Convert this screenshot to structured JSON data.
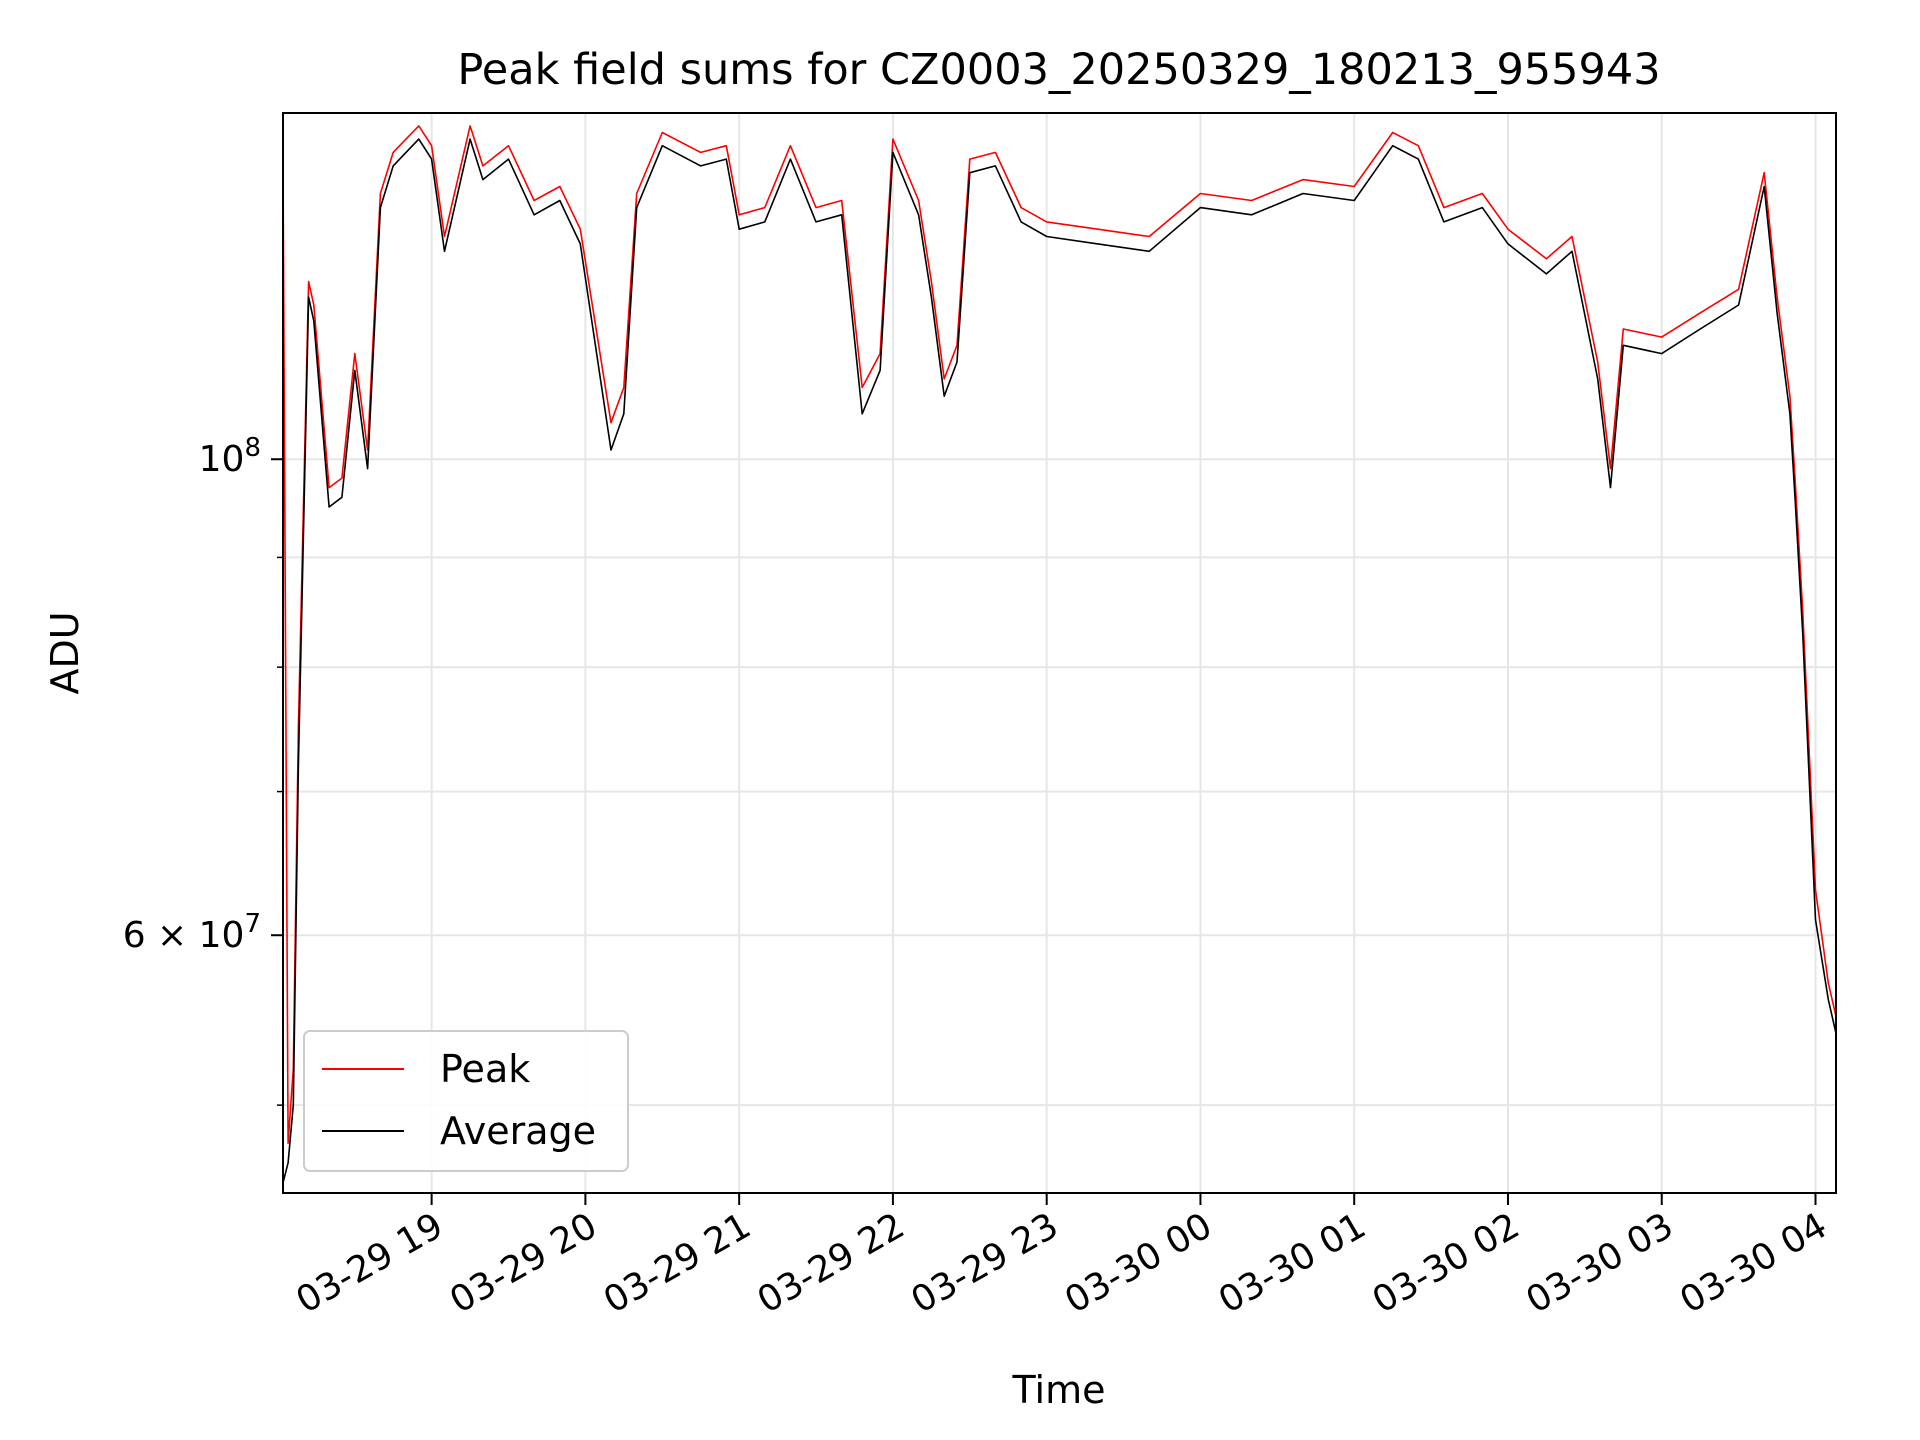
{
  "chart_data": {
    "type": "line",
    "title": "Peak field sums for CZ0003_20250329_180213_955943",
    "xlabel": "Time",
    "ylabel": "ADU",
    "y_scale": "log",
    "ylim": [
      45500000,
      145000000
    ],
    "xlim": [
      "2025-03-29 18:02",
      "2025-03-30 04:08"
    ],
    "x_ticks": [
      {
        "value": "2025-03-29 19:00",
        "label": "03-29 19"
      },
      {
        "value": "2025-03-29 20:00",
        "label": "03-29 20"
      },
      {
        "value": "2025-03-29 21:00",
        "label": "03-29 21"
      },
      {
        "value": "2025-03-29 22:00",
        "label": "03-29 22"
      },
      {
        "value": "2025-03-29 23:00",
        "label": "03-29 23"
      },
      {
        "value": "2025-03-30 00:00",
        "label": "03-30 00"
      },
      {
        "value": "2025-03-30 01:00",
        "label": "03-30 01"
      },
      {
        "value": "2025-03-30 02:00",
        "label": "03-30 02"
      },
      {
        "value": "2025-03-30 03:00",
        "label": "03-30 03"
      },
      {
        "value": "2025-03-30 04:00",
        "label": "03-30 04"
      }
    ],
    "y_major_ticks": [
      {
        "value": 100000000,
        "base": "10",
        "exp": "8"
      },
      {
        "value": 60000000,
        "base": "6 × 10",
        "exp": "7"
      }
    ],
    "y_minor_gridlines": [
      50000000,
      70000000,
      80000000,
      90000000
    ],
    "grid": true,
    "legend_position": "lower-left",
    "series": [
      {
        "name": "Peak",
        "color": "#ff0000",
        "x": [
          "2025-03-29 18:02",
          "2025-03-29 18:04",
          "2025-03-29 18:06",
          "2025-03-29 18:08",
          "2025-03-29 18:12",
          "2025-03-29 18:14",
          "2025-03-29 18:20",
          "2025-03-29 18:25",
          "2025-03-29 18:30",
          "2025-03-29 18:35",
          "2025-03-29 18:40",
          "2025-03-29 18:45",
          "2025-03-29 18:50",
          "2025-03-29 18:55",
          "2025-03-29 19:00",
          "2025-03-29 19:05",
          "2025-03-29 19:15",
          "2025-03-29 19:20",
          "2025-03-29 19:30",
          "2025-03-29 19:40",
          "2025-03-29 19:50",
          "2025-03-29 19:58",
          "2025-03-29 20:10",
          "2025-03-29 20:15",
          "2025-03-29 20:20",
          "2025-03-29 20:30",
          "2025-03-29 20:45",
          "2025-03-29 20:55",
          "2025-03-29 21:00",
          "2025-03-29 21:10",
          "2025-03-29 21:20",
          "2025-03-29 21:30",
          "2025-03-29 21:40",
          "2025-03-29 21:48",
          "2025-03-29 21:55",
          "2025-03-29 22:00",
          "2025-03-29 22:10",
          "2025-03-29 22:15",
          "2025-03-29 22:20",
          "2025-03-29 22:25",
          "2025-03-29 22:30",
          "2025-03-29 22:40",
          "2025-03-29 22:50",
          "2025-03-29 23:00",
          "2025-03-29 23:20",
          "2025-03-29 23:40",
          "2025-03-30 00:00",
          "2025-03-30 00:20",
          "2025-03-30 00:40",
          "2025-03-30 01:00",
          "2025-03-30 01:15",
          "2025-03-30 01:25",
          "2025-03-30 01:35",
          "2025-03-30 01:50",
          "2025-03-30 02:00",
          "2025-03-30 02:15",
          "2025-03-30 02:25",
          "2025-03-30 02:35",
          "2025-03-30 02:40",
          "2025-03-30 02:45",
          "2025-03-30 03:00",
          "2025-03-30 03:15",
          "2025-03-30 03:30",
          "2025-03-30 03:40",
          "2025-03-30 03:45",
          "2025-03-30 03:50",
          "2025-03-30 03:52",
          "2025-03-30 03:55",
          "2025-03-30 04:00",
          "2025-03-30 04:05",
          "2025-03-30 04:08"
        ],
        "y": [
          138000000,
          48000000,
          52000000,
          75000000,
          121000000,
          118000000,
          97000000,
          98000000,
          112000000,
          101000000,
          133000000,
          139000000,
          141000000,
          143000000,
          140000000,
          127000000,
          143000000,
          137000000,
          140000000,
          132000000,
          134000000,
          128000000,
          104000000,
          108000000,
          133000000,
          142000000,
          139000000,
          140000000,
          130000000,
          131000000,
          140000000,
          131000000,
          132000000,
          108000000,
          112000000,
          141000000,
          132000000,
          121000000,
          109000000,
          113000000,
          138000000,
          139000000,
          131000000,
          129000000,
          128000000,
          127000000,
          133000000,
          132000000,
          135000000,
          134000000,
          142000000,
          140000000,
          131000000,
          133000000,
          128000000,
          124000000,
          127000000,
          111000000,
          99000000,
          115000000,
          114000000,
          117000000,
          120000000,
          136000000,
          119000000,
          107000000,
          98000000,
          85000000,
          63000000,
          57000000,
          55000000
        ]
      },
      {
        "name": "Average",
        "color": "#000000",
        "x": [
          "2025-03-29 18:02",
          "2025-03-29 18:04",
          "2025-03-29 18:06",
          "2025-03-29 18:08",
          "2025-03-29 18:12",
          "2025-03-29 18:14",
          "2025-03-29 18:20",
          "2025-03-29 18:25",
          "2025-03-29 18:30",
          "2025-03-29 18:35",
          "2025-03-29 18:40",
          "2025-03-29 18:45",
          "2025-03-29 18:50",
          "2025-03-29 18:55",
          "2025-03-29 19:00",
          "2025-03-29 19:05",
          "2025-03-29 19:15",
          "2025-03-29 19:20",
          "2025-03-29 19:30",
          "2025-03-29 19:40",
          "2025-03-29 19:50",
          "2025-03-29 19:58",
          "2025-03-29 20:10",
          "2025-03-29 20:15",
          "2025-03-29 20:20",
          "2025-03-29 20:30",
          "2025-03-29 20:45",
          "2025-03-29 20:55",
          "2025-03-29 21:00",
          "2025-03-29 21:10",
          "2025-03-29 21:20",
          "2025-03-29 21:30",
          "2025-03-29 21:40",
          "2025-03-29 21:48",
          "2025-03-29 21:55",
          "2025-03-29 22:00",
          "2025-03-29 22:10",
          "2025-03-29 22:15",
          "2025-03-29 22:20",
          "2025-03-29 22:25",
          "2025-03-29 22:30",
          "2025-03-29 22:40",
          "2025-03-29 22:50",
          "2025-03-29 23:00",
          "2025-03-29 23:20",
          "2025-03-29 23:40",
          "2025-03-30 00:00",
          "2025-03-30 00:20",
          "2025-03-30 00:40",
          "2025-03-30 01:00",
          "2025-03-30 01:15",
          "2025-03-30 01:25",
          "2025-03-30 01:35",
          "2025-03-30 01:50",
          "2025-03-30 02:00",
          "2025-03-30 02:15",
          "2025-03-30 02:25",
          "2025-03-30 02:35",
          "2025-03-30 02:40",
          "2025-03-30 02:45",
          "2025-03-30 03:00",
          "2025-03-30 03:15",
          "2025-03-30 03:30",
          "2025-03-30 03:40",
          "2025-03-30 03:45",
          "2025-03-30 03:50",
          "2025-03-30 03:52",
          "2025-03-30 03:55",
          "2025-03-30 04:00",
          "2025-03-30 04:05",
          "2025-03-30 04:08"
        ],
        "y": [
          46000000,
          47000000,
          50000000,
          72000000,
          119000000,
          116000000,
          95000000,
          96000000,
          110000000,
          99000000,
          131000000,
          137000000,
          139000000,
          141000000,
          138000000,
          125000000,
          141000000,
          135000000,
          138000000,
          130000000,
          132000000,
          126000000,
          101000000,
          105000000,
          131000000,
          140000000,
          137000000,
          138000000,
          128000000,
          129000000,
          138000000,
          129000000,
          130000000,
          105000000,
          110000000,
          139000000,
          130000000,
          119000000,
          107000000,
          111000000,
          136000000,
          137000000,
          129000000,
          127000000,
          126000000,
          125000000,
          131000000,
          130000000,
          133000000,
          132000000,
          140000000,
          138000000,
          129000000,
          131000000,
          126000000,
          122000000,
          125000000,
          109000000,
          97000000,
          113000000,
          112000000,
          115000000,
          118000000,
          134000000,
          117000000,
          105000000,
          96000000,
          83000000,
          61000000,
          56000000,
          54000000
        ]
      }
    ]
  }
}
